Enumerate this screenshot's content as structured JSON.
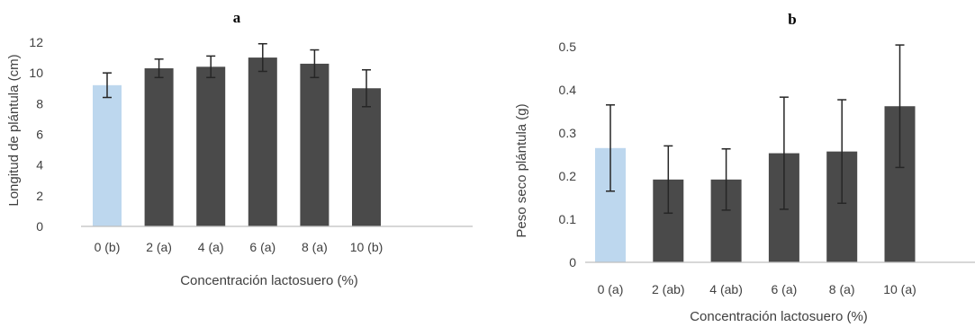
{
  "colors": {
    "control_bar": "#bdd7ee",
    "treatment_bar": "#4a4a4a",
    "axis": "#bfbfbf",
    "error_bar": "#262626",
    "text": "#404040"
  },
  "chart_data": [
    {
      "type": "bar",
      "title": "a",
      "xlabel": "Concentración lactosuero (%)",
      "ylabel": "Longitud de plántula (cm)",
      "categories": [
        "0 (b)",
        "2 (a)",
        "4 (a)",
        "6 (a)",
        "8 (a)",
        "10 (b)"
      ],
      "values": [
        9.2,
        10.3,
        10.4,
        11.0,
        10.6,
        9.0
      ],
      "errors": [
        0.8,
        0.6,
        0.7,
        0.9,
        0.9,
        1.2
      ],
      "ylim": [
        0,
        12
      ],
      "yticks": [
        "0",
        "2",
        "4",
        "6",
        "8",
        "10",
        "12"
      ],
      "ytick_values": [
        0,
        2,
        4,
        6,
        8,
        10,
        12
      ],
      "grid": false,
      "highlight_index": 0
    },
    {
      "type": "bar",
      "title": "b",
      "xlabel": "Concentración lactosuero (%)",
      "ylabel": "Peso seco plántula (g)",
      "categories": [
        "0 (a)",
        "2 (ab)",
        "4 (ab)",
        "6 (a)",
        "8 (a)",
        "10 (a)"
      ],
      "values": [
        0.265,
        0.192,
        0.192,
        0.253,
        0.257,
        0.362
      ],
      "errors": [
        0.1,
        0.078,
        0.071,
        0.13,
        0.12,
        0.142
      ],
      "ylim": [
        0,
        0.5
      ],
      "yticks": [
        "0",
        "0.1",
        "0.2",
        "0.3",
        "0.4",
        "0.5"
      ],
      "ytick_values": [
        0,
        0.1,
        0.2,
        0.3,
        0.4,
        0.5
      ],
      "grid": false,
      "highlight_index": 0
    }
  ]
}
